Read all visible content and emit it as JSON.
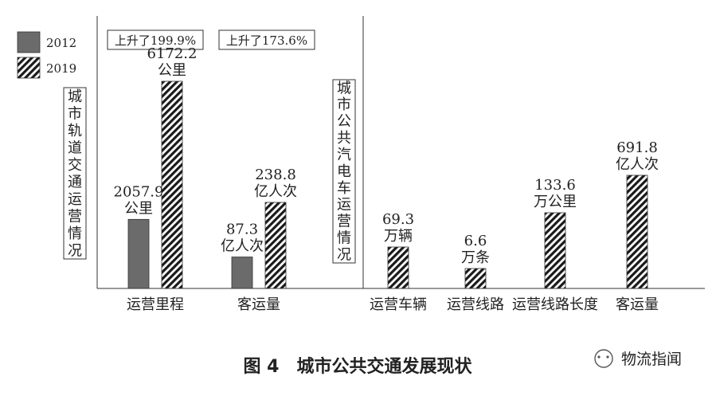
{
  "legend": [
    {
      "label": "2012",
      "pattern": "solid",
      "color": "#6b6b6b"
    },
    {
      "label": "2019",
      "pattern": "hatch",
      "color": "#1a1a1a"
    }
  ],
  "caption": "图 4　城市公共交通发展现状",
  "watermark": {
    "logo_text": "物流指闻"
  },
  "chart_data": [
    {
      "type": "bar",
      "group_label": "城市轨道交通运营情况",
      "categories": [
        "运营里程",
        "客运量"
      ],
      "series": [
        {
          "name": "2012",
          "values": [
            2057.9,
            87.3
          ],
          "labels": [
            "2057.9\n公里",
            "87.3\n亿人次"
          ]
        },
        {
          "name": "2019",
          "values": [
            6172.2,
            238.8
          ],
          "labels": [
            "6172.2\n公里",
            "238.8\n亿人次"
          ]
        }
      ],
      "annotations": [
        "上升了199.9%",
        "上升了173.6%"
      ]
    },
    {
      "type": "bar",
      "group_label": "城市公共汽电车运营情况",
      "categories": [
        "运营车辆",
        "运营线路",
        "运营线路长度",
        "客运量"
      ],
      "series": [
        {
          "name": "2019",
          "values": [
            69.3,
            6.6,
            133.6,
            691.8
          ],
          "labels": [
            "69.3\n万辆",
            "6.6\n万条",
            "133.6\n万公里",
            "691.8\n亿人次"
          ]
        }
      ]
    }
  ]
}
